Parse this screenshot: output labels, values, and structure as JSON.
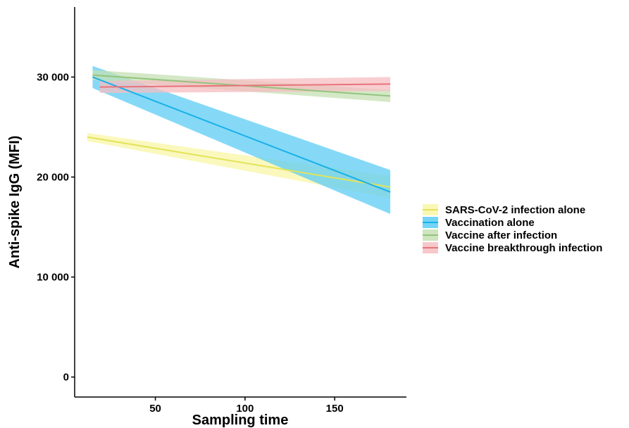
{
  "chart_data": {
    "type": "line",
    "xlabel": "Sampling time",
    "ylabel": "Anti-spike IgG (MFI)",
    "xlim": [
      5,
      190
    ],
    "ylim": [
      -2000,
      37000
    ],
    "x_ticks": [
      50,
      100,
      150
    ],
    "x_tick_labels": [
      "50",
      "100",
      "150"
    ],
    "y_ticks": [
      0,
      10000,
      20000,
      30000
    ],
    "y_tick_labels": [
      "0",
      "10 000",
      "20 000",
      "30 000"
    ],
    "grid": false,
    "legend_position": "right",
    "series": [
      {
        "name": "SARS-CoV-2 infection alone",
        "color": "#e3e35a",
        "band_color": "#f8f6a6",
        "x": [
          12,
          181
        ],
        "y": [
          24000,
          19000
        ],
        "lower": [
          23600,
          17900
        ],
        "upper": [
          24400,
          20100
        ]
      },
      {
        "name": "Vaccination alone",
        "color": "#1ab0e8",
        "band_color": "#5cccf4",
        "x": [
          15,
          181
        ],
        "y": [
          30000,
          18500
        ],
        "lower": [
          28900,
          16300
        ],
        "upper": [
          31100,
          20700
        ]
      },
      {
        "name": "Vaccine after infection",
        "color": "#93c47d",
        "band_color": "#c5e0b4",
        "x": [
          15,
          181
        ],
        "y": [
          30200,
          28100
        ],
        "lower": [
          29700,
          27500
        ],
        "upper": [
          30700,
          28700
        ]
      },
      {
        "name": "Vaccine breakthrough infection",
        "color": "#e8737a",
        "band_color": "#f6bec1",
        "x": [
          19,
          181
        ],
        "y": [
          29000,
          29300
        ],
        "lower": [
          28400,
          28600
        ],
        "upper": [
          29600,
          30000
        ]
      }
    ]
  }
}
